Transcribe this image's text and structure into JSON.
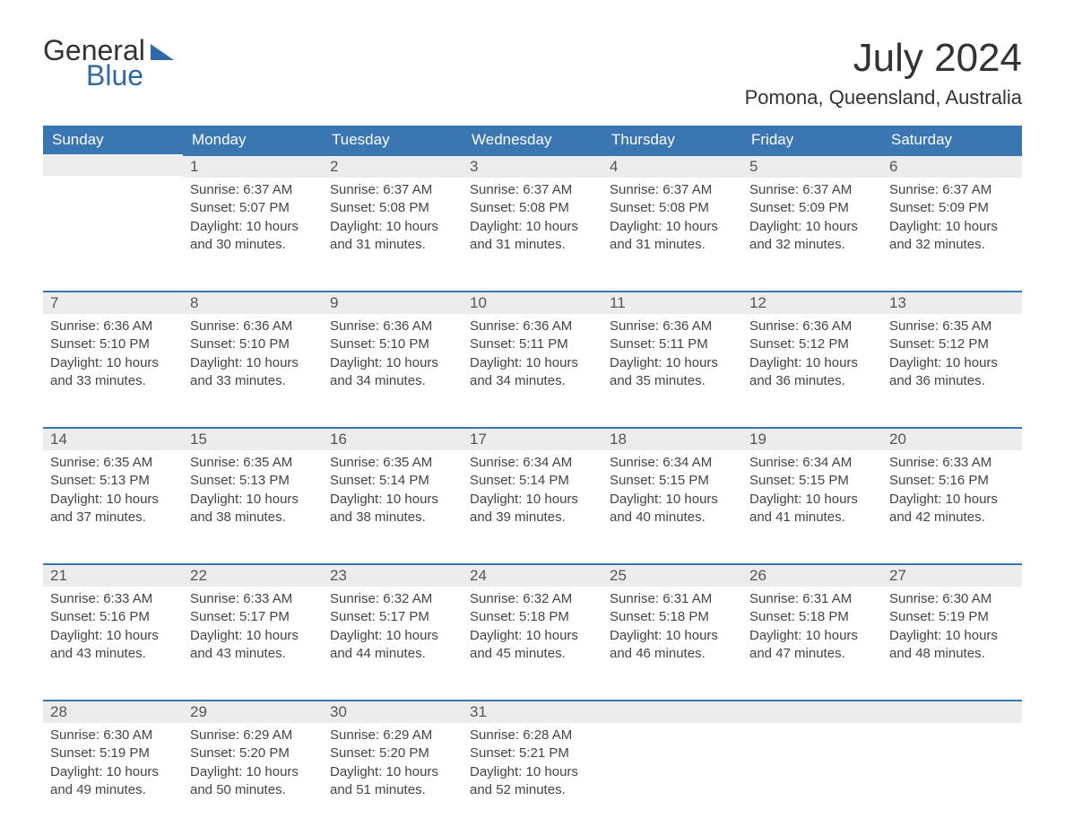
{
  "logo": {
    "word1": "General",
    "word2": "Blue"
  },
  "title": "July 2024",
  "location": "Pomona, Queensland, Australia",
  "colors": {
    "header_bg": "#3a76b2",
    "header_text": "#ffffff",
    "daynum_bg": "#ececec",
    "daynum_border": "#3a76b2",
    "text": "#444444",
    "logo_accent": "#2f6aa8"
  },
  "day_labels": [
    "Sunday",
    "Monday",
    "Tuesday",
    "Wednesday",
    "Thursday",
    "Friday",
    "Saturday"
  ],
  "weeks": [
    [
      null,
      {
        "n": "1",
        "sunrise": "6:37 AM",
        "sunset": "5:07 PM",
        "dlh": "10",
        "dlm": "30"
      },
      {
        "n": "2",
        "sunrise": "6:37 AM",
        "sunset": "5:08 PM",
        "dlh": "10",
        "dlm": "31"
      },
      {
        "n": "3",
        "sunrise": "6:37 AM",
        "sunset": "5:08 PM",
        "dlh": "10",
        "dlm": "31"
      },
      {
        "n": "4",
        "sunrise": "6:37 AM",
        "sunset": "5:08 PM",
        "dlh": "10",
        "dlm": "31"
      },
      {
        "n": "5",
        "sunrise": "6:37 AM",
        "sunset": "5:09 PM",
        "dlh": "10",
        "dlm": "32"
      },
      {
        "n": "6",
        "sunrise": "6:37 AM",
        "sunset": "5:09 PM",
        "dlh": "10",
        "dlm": "32"
      }
    ],
    [
      {
        "n": "7",
        "sunrise": "6:36 AM",
        "sunset": "5:10 PM",
        "dlh": "10",
        "dlm": "33"
      },
      {
        "n": "8",
        "sunrise": "6:36 AM",
        "sunset": "5:10 PM",
        "dlh": "10",
        "dlm": "33"
      },
      {
        "n": "9",
        "sunrise": "6:36 AM",
        "sunset": "5:10 PM",
        "dlh": "10",
        "dlm": "34"
      },
      {
        "n": "10",
        "sunrise": "6:36 AM",
        "sunset": "5:11 PM",
        "dlh": "10",
        "dlm": "34"
      },
      {
        "n": "11",
        "sunrise": "6:36 AM",
        "sunset": "5:11 PM",
        "dlh": "10",
        "dlm": "35"
      },
      {
        "n": "12",
        "sunrise": "6:36 AM",
        "sunset": "5:12 PM",
        "dlh": "10",
        "dlm": "36"
      },
      {
        "n": "13",
        "sunrise": "6:35 AM",
        "sunset": "5:12 PM",
        "dlh": "10",
        "dlm": "36"
      }
    ],
    [
      {
        "n": "14",
        "sunrise": "6:35 AM",
        "sunset": "5:13 PM",
        "dlh": "10",
        "dlm": "37"
      },
      {
        "n": "15",
        "sunrise": "6:35 AM",
        "sunset": "5:13 PM",
        "dlh": "10",
        "dlm": "38"
      },
      {
        "n": "16",
        "sunrise": "6:35 AM",
        "sunset": "5:14 PM",
        "dlh": "10",
        "dlm": "38"
      },
      {
        "n": "17",
        "sunrise": "6:34 AM",
        "sunset": "5:14 PM",
        "dlh": "10",
        "dlm": "39"
      },
      {
        "n": "18",
        "sunrise": "6:34 AM",
        "sunset": "5:15 PM",
        "dlh": "10",
        "dlm": "40"
      },
      {
        "n": "19",
        "sunrise": "6:34 AM",
        "sunset": "5:15 PM",
        "dlh": "10",
        "dlm": "41"
      },
      {
        "n": "20",
        "sunrise": "6:33 AM",
        "sunset": "5:16 PM",
        "dlh": "10",
        "dlm": "42"
      }
    ],
    [
      {
        "n": "21",
        "sunrise": "6:33 AM",
        "sunset": "5:16 PM",
        "dlh": "10",
        "dlm": "43"
      },
      {
        "n": "22",
        "sunrise": "6:33 AM",
        "sunset": "5:17 PM",
        "dlh": "10",
        "dlm": "43"
      },
      {
        "n": "23",
        "sunrise": "6:32 AM",
        "sunset": "5:17 PM",
        "dlh": "10",
        "dlm": "44"
      },
      {
        "n": "24",
        "sunrise": "6:32 AM",
        "sunset": "5:18 PM",
        "dlh": "10",
        "dlm": "45"
      },
      {
        "n": "25",
        "sunrise": "6:31 AM",
        "sunset": "5:18 PM",
        "dlh": "10",
        "dlm": "46"
      },
      {
        "n": "26",
        "sunrise": "6:31 AM",
        "sunset": "5:18 PM",
        "dlh": "10",
        "dlm": "47"
      },
      {
        "n": "27",
        "sunrise": "6:30 AM",
        "sunset": "5:19 PM",
        "dlh": "10",
        "dlm": "48"
      }
    ],
    [
      {
        "n": "28",
        "sunrise": "6:30 AM",
        "sunset": "5:19 PM",
        "dlh": "10",
        "dlm": "49"
      },
      {
        "n": "29",
        "sunrise": "6:29 AM",
        "sunset": "5:20 PM",
        "dlh": "10",
        "dlm": "50"
      },
      {
        "n": "30",
        "sunrise": "6:29 AM",
        "sunset": "5:20 PM",
        "dlh": "10",
        "dlm": "51"
      },
      {
        "n": "31",
        "sunrise": "6:28 AM",
        "sunset": "5:21 PM",
        "dlh": "10",
        "dlm": "52"
      },
      null,
      null,
      null
    ]
  ],
  "labels": {
    "sunrise_prefix": "Sunrise: ",
    "sunset_prefix": "Sunset: ",
    "daylight_prefix": "Daylight: ",
    "hours_word": " hours",
    "and_word": "and ",
    "minutes_word": " minutes."
  }
}
